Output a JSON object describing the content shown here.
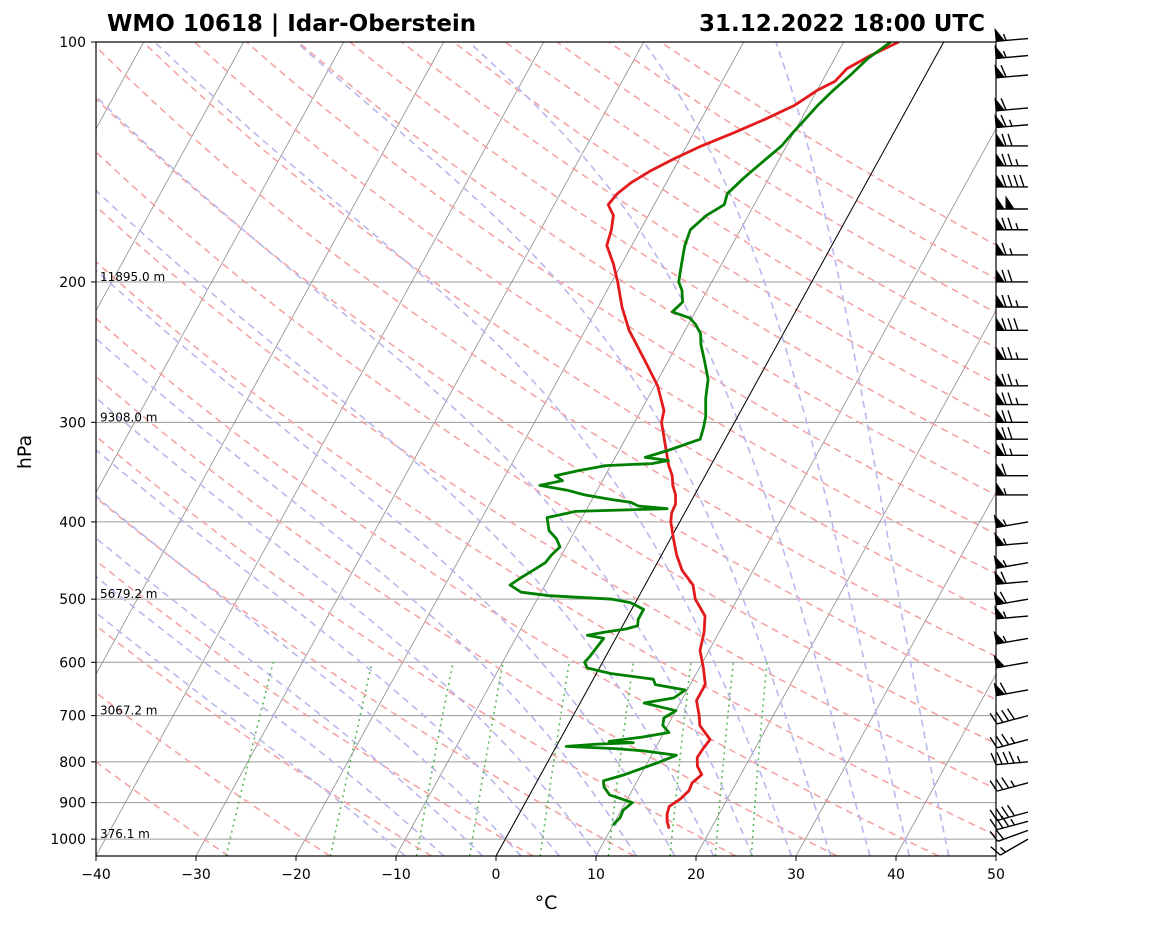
{
  "chart_data": {
    "type": "line",
    "title_left": "WMO 10618 | Idar-Oberstein",
    "title_right": "31.12.2022 18:00 UTC",
    "xlabel": "°C",
    "ylabel": "hPa",
    "xlim": [
      -40,
      50
    ],
    "ylim": [
      1050,
      100
    ],
    "x_ticks": [
      -40,
      -30,
      -20,
      -10,
      0,
      10,
      20,
      30,
      40,
      50
    ],
    "x_tick_labels": [
      "−40",
      "−30",
      "−20",
      "−10",
      "0",
      "10",
      "20",
      "30",
      "40",
      "50"
    ],
    "y_ticks": [
      100,
      200,
      300,
      400,
      500,
      600,
      700,
      800,
      900,
      1000
    ],
    "y_tick_labels": [
      "100",
      "200",
      "300",
      "400",
      "500",
      "600",
      "700",
      "800",
      "900",
      "1000"
    ],
    "height_labels": [
      {
        "p": 200,
        "text": "11895.0 m"
      },
      {
        "p": 300,
        "text": "9308.0 m"
      },
      {
        "p": 500,
        "text": "5679.2 m"
      },
      {
        "p": 700,
        "text": "3067.2 m"
      },
      {
        "p": 1000,
        "text": "376.1 m"
      }
    ],
    "grid": true,
    "series": [
      {
        "key": "temperature",
        "color": "#e31a1c",
        "points": [
          [
            970,
            15.8
          ],
          [
            950,
            15.2
          ],
          [
            930,
            14.8
          ],
          [
            910,
            14.6
          ],
          [
            890,
            15.3
          ],
          [
            870,
            15.7
          ],
          [
            850,
            15.6
          ],
          [
            830,
            16.1
          ],
          [
            810,
            15.2
          ],
          [
            790,
            14.7
          ],
          [
            770,
            14.8
          ],
          [
            750,
            15.0
          ],
          [
            720,
            13.2
          ],
          [
            700,
            12.6
          ],
          [
            670,
            11.5
          ],
          [
            640,
            11.5
          ],
          [
            610,
            10.4
          ],
          [
            580,
            9.1
          ],
          [
            550,
            8.5
          ],
          [
            525,
            7.7
          ],
          [
            500,
            5.8
          ],
          [
            480,
            4.8
          ],
          [
            460,
            2.9
          ],
          [
            440,
            1.5
          ],
          [
            420,
            0.3
          ],
          [
            400,
            -0.9
          ],
          [
            390,
            -1.3
          ],
          [
            380,
            -1.4
          ],
          [
            370,
            -1.9
          ],
          [
            360,
            -2.7
          ],
          [
            350,
            -3.3
          ],
          [
            340,
            -4.2
          ],
          [
            320,
            -5.7
          ],
          [
            300,
            -7.3
          ],
          [
            290,
            -7.7
          ],
          [
            270,
            -9.7
          ],
          [
            250,
            -12.5
          ],
          [
            230,
            -15.6
          ],
          [
            215,
            -17.6
          ],
          [
            200,
            -19.4
          ],
          [
            190,
            -20.8
          ],
          [
            180,
            -22.5
          ],
          [
            172,
            -22.9
          ],
          [
            165,
            -23.5
          ],
          [
            160,
            -24.6
          ],
          [
            155,
            -24.3
          ],
          [
            150,
            -23.5
          ],
          [
            145,
            -22.2
          ],
          [
            140,
            -20.5
          ],
          [
            135,
            -18.5
          ],
          [
            130,
            -16.0
          ],
          [
            125,
            -13.6
          ],
          [
            120,
            -11.4
          ],
          [
            115,
            -10.0
          ],
          [
            112,
            -8.7
          ],
          [
            108,
            -8.2
          ],
          [
            104,
            -6.6
          ],
          [
            100,
            -4.5
          ]
        ]
      },
      {
        "key": "dewpoint",
        "color": "#008000",
        "points": [
          [
            960,
            10.0
          ],
          [
            940,
            10.3
          ],
          [
            920,
            10.2
          ],
          [
            900,
            10.7
          ],
          [
            880,
            8.0
          ],
          [
            860,
            7.0
          ],
          [
            845,
            6.6
          ],
          [
            830,
            8.4
          ],
          [
            815,
            9.8
          ],
          [
            800,
            11.2
          ],
          [
            785,
            12.5
          ],
          [
            775,
            9.0
          ],
          [
            770,
            6.0
          ],
          [
            765,
            1.0
          ],
          [
            760,
            4.0
          ],
          [
            757,
            7.5
          ],
          [
            754,
            5.0
          ],
          [
            745,
            8.0
          ],
          [
            735,
            10.5
          ],
          [
            720,
            9.5
          ],
          [
            705,
            9.2
          ],
          [
            690,
            10.0
          ],
          [
            675,
            6.4
          ],
          [
            665,
            9.1
          ],
          [
            650,
            9.8
          ],
          [
            640,
            6.5
          ],
          [
            630,
            6.0
          ],
          [
            620,
            1.5
          ],
          [
            610,
            -1.2
          ],
          [
            600,
            -1.8
          ],
          [
            590,
            -1.6
          ],
          [
            575,
            -1.4
          ],
          [
            560,
            -1.2
          ],
          [
            555,
            -3.0
          ],
          [
            550,
            -1.5
          ],
          [
            545,
            0.5
          ],
          [
            540,
            1.5
          ],
          [
            530,
            1.2
          ],
          [
            515,
            1.2
          ],
          [
            505,
            -0.5
          ],
          [
            500,
            -2.5
          ],
          [
            495,
            -9.0
          ],
          [
            490,
            -12.0
          ],
          [
            480,
            -13.5
          ],
          [
            470,
            -12.8
          ],
          [
            460,
            -12.0
          ],
          [
            450,
            -11.2
          ],
          [
            440,
            -11.0
          ],
          [
            430,
            -10.6
          ],
          [
            420,
            -11.4
          ],
          [
            410,
            -12.6
          ],
          [
            395,
            -13.5
          ],
          [
            388,
            -11.0
          ],
          [
            385,
            -2.0
          ],
          [
            382,
            -5.0
          ],
          [
            378,
            -6.0
          ],
          [
            375,
            -8.0
          ],
          [
            370,
            -11.0
          ],
          [
            365,
            -13.0
          ],
          [
            360,
            -16.0
          ],
          [
            355,
            -14.0
          ],
          [
            350,
            -15.0
          ],
          [
            345,
            -13.0
          ],
          [
            340,
            -10.5
          ],
          [
            338,
            -6.0
          ],
          [
            335,
            -4.5
          ],
          [
            332,
            -7.0
          ],
          [
            325,
            -5.0
          ],
          [
            315,
            -2.5
          ],
          [
            305,
            -2.8
          ],
          [
            295,
            -3.2
          ],
          [
            280,
            -4.2
          ],
          [
            265,
            -5.0
          ],
          [
            250,
            -6.5
          ],
          [
            240,
            -7.6
          ],
          [
            232,
            -8.3
          ],
          [
            226,
            -9.3
          ],
          [
            222,
            -10.2
          ],
          [
            218,
            -12.3
          ],
          [
            212,
            -11.8
          ],
          [
            205,
            -12.5
          ],
          [
            200,
            -13.3
          ],
          [
            190,
            -14.0
          ],
          [
            180,
            -14.7
          ],
          [
            172,
            -15.0
          ],
          [
            165,
            -14.2
          ],
          [
            160,
            -13.0
          ],
          [
            155,
            -13.3
          ],
          [
            148,
            -12.5
          ],
          [
            140,
            -11.3
          ],
          [
            135,
            -10.5
          ],
          [
            130,
            -10.1
          ],
          [
            125,
            -9.6
          ],
          [
            120,
            -9.1
          ],
          [
            115,
            -8.4
          ],
          [
            110,
            -7.5
          ],
          [
            105,
            -6.7
          ],
          [
            100,
            -5.3
          ]
        ]
      }
    ],
    "wind_barbs": [
      {
        "p": 1000,
        "dir": 240,
        "speed_kt": 15
      },
      {
        "p": 975,
        "dir": 250,
        "speed_kt": 20
      },
      {
        "p": 950,
        "dir": 255,
        "speed_kt": 35
      },
      {
        "p": 925,
        "dir": 255,
        "speed_kt": 40
      },
      {
        "p": 850,
        "dir": 255,
        "speed_kt": 35
      },
      {
        "p": 800,
        "dir": 265,
        "speed_kt": 45
      },
      {
        "p": 750,
        "dir": 255,
        "speed_kt": 35
      },
      {
        "p": 700,
        "dir": 255,
        "speed_kt": 40
      },
      {
        "p": 650,
        "dir": 260,
        "speed_kt": 60
      },
      {
        "p": 600,
        "dir": 260,
        "speed_kt": 50
      },
      {
        "p": 560,
        "dir": 260,
        "speed_kt": 55
      },
      {
        "p": 525,
        "dir": 265,
        "speed_kt": 55
      },
      {
        "p": 500,
        "dir": 260,
        "speed_kt": 60
      },
      {
        "p": 475,
        "dir": 265,
        "speed_kt": 60
      },
      {
        "p": 450,
        "dir": 260,
        "speed_kt": 55
      },
      {
        "p": 425,
        "dir": 265,
        "speed_kt": 55
      },
      {
        "p": 400,
        "dir": 260,
        "speed_kt": 55
      },
      {
        "p": 370,
        "dir": 270,
        "speed_kt": 55
      },
      {
        "p": 350,
        "dir": 270,
        "speed_kt": 60
      },
      {
        "p": 330,
        "dir": 270,
        "speed_kt": 65
      },
      {
        "p": 315,
        "dir": 270,
        "speed_kt": 70
      },
      {
        "p": 300,
        "dir": 270,
        "speed_kt": 70
      },
      {
        "p": 285,
        "dir": 270,
        "speed_kt": 75
      },
      {
        "p": 270,
        "dir": 270,
        "speed_kt": 75
      },
      {
        "p": 250,
        "dir": 270,
        "speed_kt": 75
      },
      {
        "p": 230,
        "dir": 270,
        "speed_kt": 80
      },
      {
        "p": 215,
        "dir": 270,
        "speed_kt": 75
      },
      {
        "p": 200,
        "dir": 270,
        "speed_kt": 70
      },
      {
        "p": 185,
        "dir": 270,
        "speed_kt": 65
      },
      {
        "p": 172,
        "dir": 270,
        "speed_kt": 75
      },
      {
        "p": 162,
        "dir": 270,
        "speed_kt": 100
      },
      {
        "p": 152,
        "dir": 270,
        "speed_kt": 90
      },
      {
        "p": 143,
        "dir": 270,
        "speed_kt": 75
      },
      {
        "p": 135,
        "dir": 270,
        "speed_kt": 70
      },
      {
        "p": 127,
        "dir": 265,
        "speed_kt": 65
      },
      {
        "p": 121,
        "dir": 265,
        "speed_kt": 60
      },
      {
        "p": 110,
        "dir": 265,
        "speed_kt": 60
      },
      {
        "p": 104,
        "dir": 265,
        "speed_kt": 55
      },
      {
        "p": 99,
        "dir": 265,
        "speed_kt": 55
      }
    ]
  }
}
